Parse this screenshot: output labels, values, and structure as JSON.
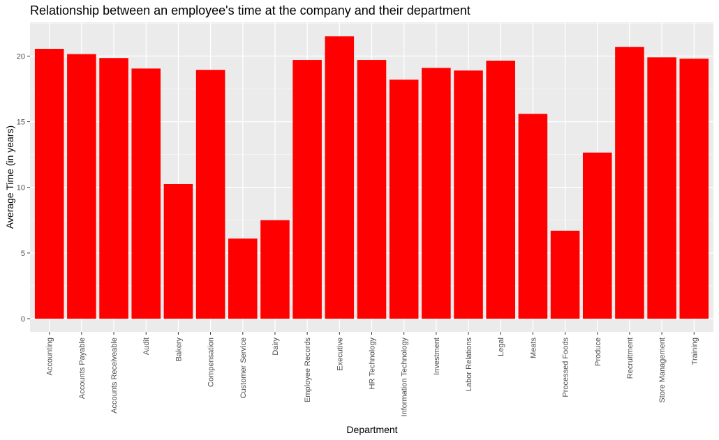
{
  "chart_data": {
    "type": "bar",
    "title": "Relationship between an employee's time at the company and their department",
    "xlabel": "Department",
    "ylabel": "Average Time (in years)",
    "categories": [
      "Accounting",
      "Accounts Payable",
      "Accounts Receiveable",
      "Audit",
      "Bakery",
      "Compensation",
      "Customer Service",
      "Dairy",
      "Employee Records",
      "Executive",
      "HR Technology",
      "Information Technology",
      "Investment",
      "Labor Relations",
      "Legal",
      "Meats",
      "Processed Foods",
      "Produce",
      "Recruitment",
      "Store Management",
      "Training"
    ],
    "values": [
      20.55,
      20.15,
      19.85,
      19.05,
      10.25,
      18.95,
      6.1,
      7.5,
      19.7,
      21.5,
      19.7,
      18.2,
      19.1,
      18.9,
      19.65,
      15.6,
      6.7,
      12.65,
      20.7,
      19.9,
      19.8
    ],
    "yticks": [
      0,
      5,
      10,
      15,
      20
    ],
    "ylim": [
      0,
      22.5
    ],
    "bar_color": "#FF0000",
    "panel_color": "#EBEBEB",
    "grid": true,
    "legend": "none"
  }
}
